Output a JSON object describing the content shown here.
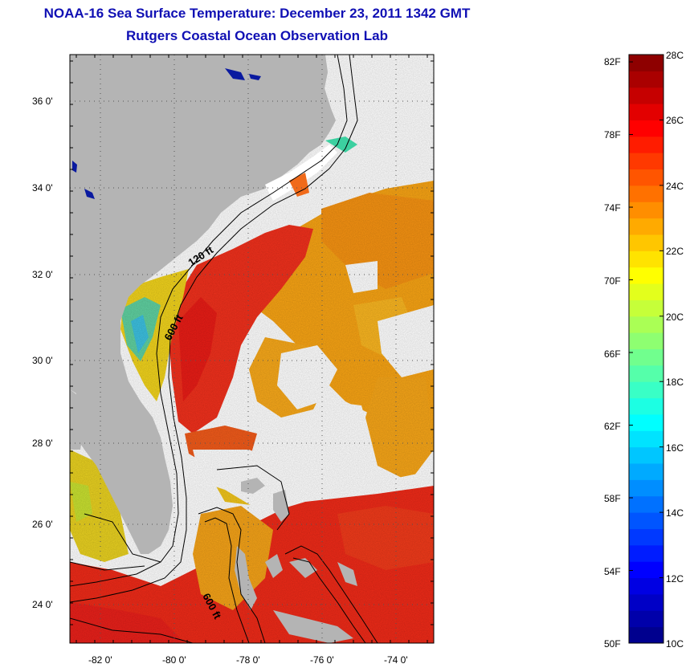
{
  "header": {
    "title": "NOAA-16 Sea Surface Temperature:  December 23, 2011 1342 GMT",
    "subtitle": "Rutgers Coastal Ocean Observation Lab"
  },
  "map": {
    "lat_labels": [
      "36 0'",
      "34 0'",
      "32 0'",
      "30 0'",
      "28 0'",
      "26 0'",
      "24 0'"
    ],
    "lon_labels": [
      "-82 0'",
      "-80 0'",
      "-78 0'",
      "-76 0'",
      "-74 0'"
    ],
    "contour_labels": [
      "120 ft",
      "600 ft",
      "600 ft"
    ],
    "colors": {
      "land": "#b4b4b4",
      "cloud": "#ffffff"
    }
  },
  "colorbar": {
    "fahrenheit_labels": [
      "82F",
      "78F",
      "74F",
      "70F",
      "66F",
      "62F",
      "58F",
      "54F",
      "50F"
    ],
    "celsius_labels": [
      "28C",
      "26C",
      "24C",
      "22C",
      "20C",
      "18C",
      "16C",
      "14C",
      "12C",
      "10C"
    ],
    "range_c": [
      10,
      28
    ],
    "colormap": "jet"
  }
}
